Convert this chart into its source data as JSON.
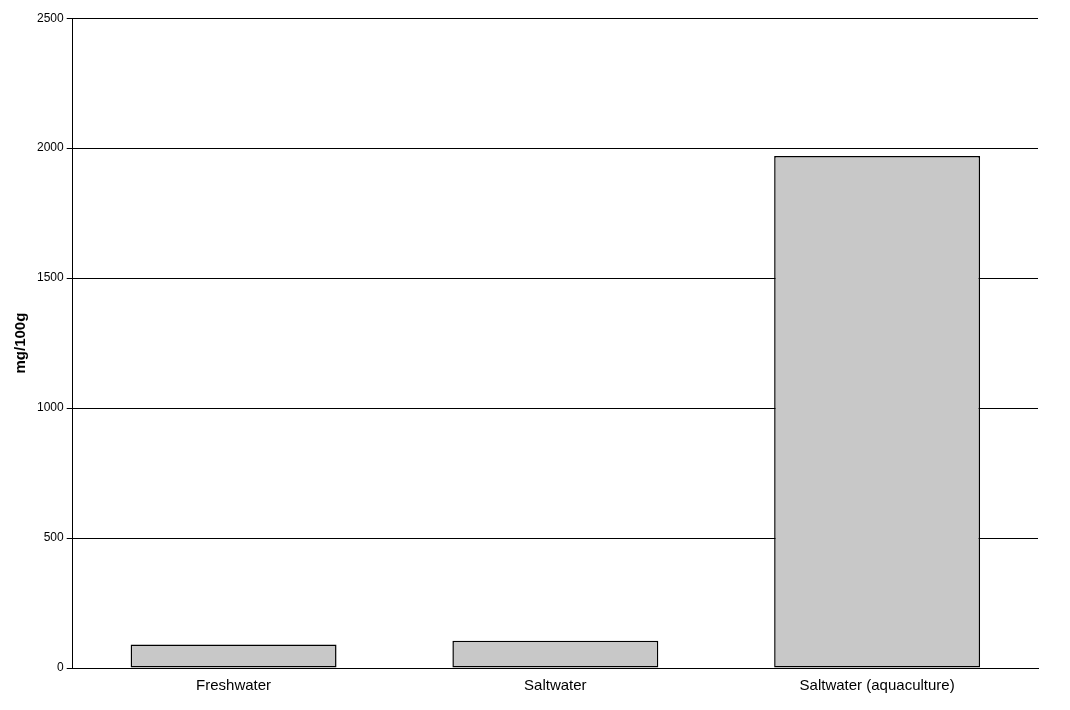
{
  "chart_data": {
    "type": "bar",
    "ylabel": "mg/100g",
    "categories": [
      "Freshwater",
      "Saltwater",
      "Saltwater (aquaculture)"
    ],
    "values": [
      90,
      105,
      1970
    ],
    "color": "#c8c8c8",
    "ylim": [
      0,
      2500
    ],
    "yticks": [
      0,
      500,
      1000,
      1500,
      2000,
      2500
    ],
    "grid": "y",
    "legend": false
  }
}
